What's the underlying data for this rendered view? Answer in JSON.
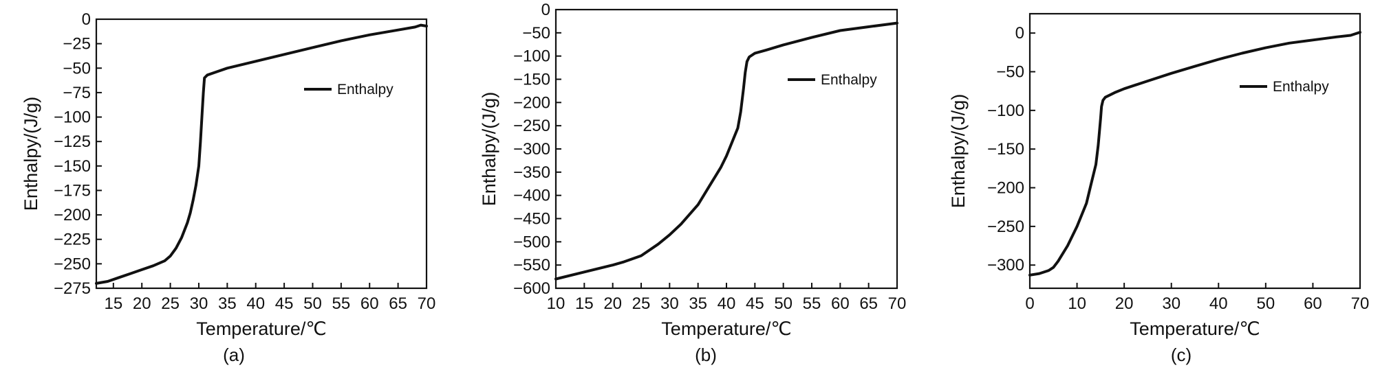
{
  "chart_data": [
    {
      "panel": "(a)",
      "type": "line",
      "xlabel": "Temperature/℃",
      "ylabel": "Enthalpy/(J/g)",
      "xlim": [
        12,
        70
      ],
      "ylim": [
        -275,
        0
      ],
      "xticks": [
        15,
        20,
        25,
        30,
        35,
        40,
        45,
        50,
        55,
        60,
        65,
        70
      ],
      "yticks": [
        0,
        -25,
        -50,
        -75,
        -100,
        -125,
        -150,
        -175,
        -200,
        -225,
        -250,
        -275
      ],
      "grid": false,
      "legend_position": "top-right",
      "line_color": "#111111",
      "series": [
        {
          "name": "Enthalpy",
          "x": [
            12,
            14,
            16,
            18,
            20,
            22,
            24,
            25,
            26,
            27,
            28,
            28.5,
            29,
            29.5,
            30,
            30.3,
            30.6,
            30.8,
            31,
            31.5,
            33,
            35,
            40,
            45,
            50,
            55,
            60,
            65,
            68,
            69,
            70
          ],
          "y": [
            -270,
            -268,
            -264,
            -260,
            -256,
            -252,
            -247,
            -242,
            -234,
            -223,
            -208,
            -198,
            -185,
            -170,
            -150,
            -125,
            -95,
            -75,
            -60,
            -57,
            -54,
            -50,
            -43,
            -36,
            -29,
            -22,
            -16,
            -11,
            -8,
            -6,
            -7
          ]
        }
      ]
    },
    {
      "panel": "(b)",
      "type": "line",
      "xlabel": "Temperature/℃",
      "ylabel": "Enthalpy/(J/g)",
      "xlim": [
        10,
        70
      ],
      "ylim": [
        -600,
        0
      ],
      "xticks": [
        10,
        15,
        20,
        25,
        30,
        35,
        40,
        45,
        50,
        55,
        60,
        65,
        70
      ],
      "yticks": [
        0,
        -50,
        -100,
        -150,
        -200,
        -250,
        -300,
        -350,
        -400,
        -450,
        -500,
        -550,
        -600
      ],
      "grid": false,
      "legend_position": "top-right",
      "line_color": "#111111",
      "series": [
        {
          "name": "Enthalpy",
          "x": [
            10,
            15,
            20,
            22,
            25,
            28,
            30,
            32,
            35,
            37,
            39,
            40,
            41,
            42,
            42.5,
            43,
            43.3,
            43.6,
            44,
            45,
            47,
            50,
            55,
            60,
            65,
            70
          ],
          "y": [
            -580,
            -565,
            -550,
            -543,
            -530,
            -505,
            -485,
            -462,
            -420,
            -380,
            -340,
            -315,
            -285,
            -255,
            -220,
            -170,
            -135,
            -112,
            -102,
            -94,
            -87,
            -76,
            -60,
            -45,
            -37,
            -29
          ]
        }
      ]
    },
    {
      "panel": "(c)",
      "type": "line",
      "xlabel": "Temperature/℃",
      "ylabel": "Enthalpy/(J/g)",
      "xlim": [
        0,
        70
      ],
      "ylim": [
        -330,
        25
      ],
      "xticks": [
        0,
        10,
        20,
        30,
        40,
        50,
        60,
        70
      ],
      "yticks": [
        0,
        -50,
        -100,
        -150,
        -200,
        -250,
        -300
      ],
      "grid": false,
      "legend_position": "top-right",
      "line_color": "#111111",
      "series": [
        {
          "name": "Enthalpy",
          "x": [
            0,
            2,
            4,
            5,
            6,
            8,
            10,
            12,
            13,
            14,
            14.5,
            15,
            15.2,
            15.5,
            16,
            17,
            18,
            20,
            25,
            30,
            35,
            40,
            45,
            50,
            55,
            60,
            65,
            68,
            70
          ],
          "y": [
            -313,
            -311,
            -307,
            -303,
            -295,
            -275,
            -250,
            -220,
            -195,
            -170,
            -145,
            -110,
            -95,
            -87,
            -83,
            -80,
            -77,
            -72,
            -62,
            -52,
            -43,
            -34,
            -26,
            -19,
            -13,
            -9,
            -5,
            -3,
            1
          ]
        }
      ]
    }
  ]
}
